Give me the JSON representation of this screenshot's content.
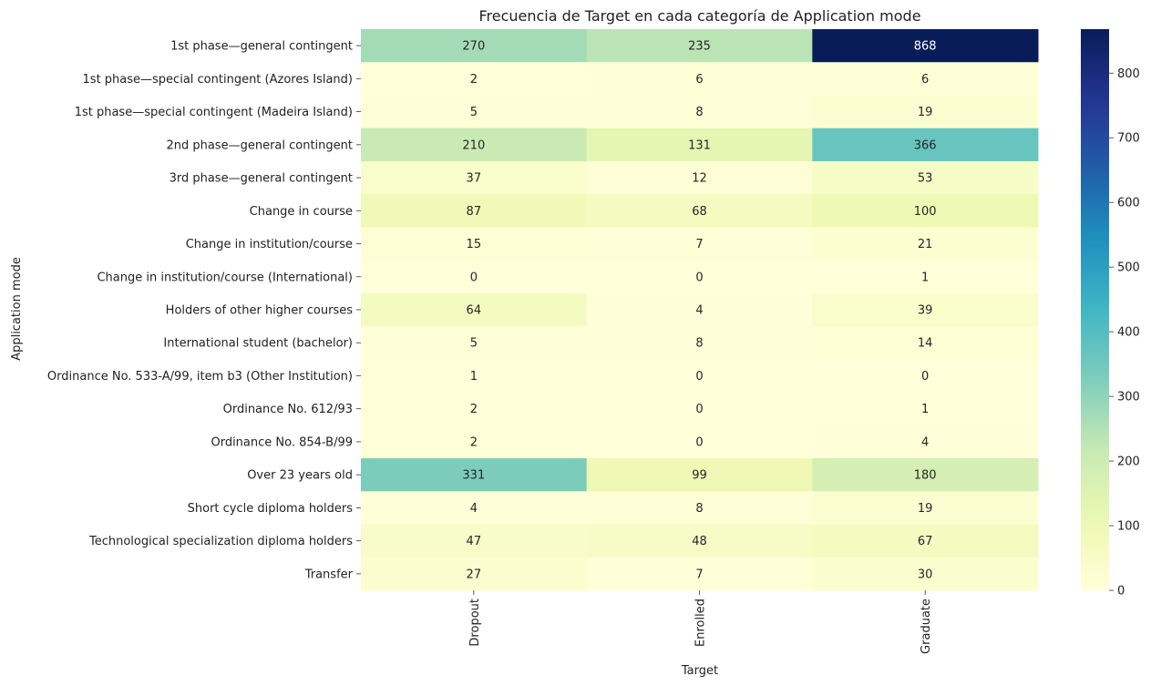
{
  "chart_data": {
    "type": "heatmap",
    "title": "Frecuencia de Target en cada categoría de Application mode",
    "xlabel": "Target",
    "ylabel": "Application mode",
    "columns": [
      "Dropout",
      "Enrolled",
      "Graduate"
    ],
    "rows": [
      "1st phase—general contingent",
      "1st phase—special contingent (Azores Island)",
      "1st phase—special contingent (Madeira Island)",
      "2nd phase—general contingent",
      "3rd phase—general contingent",
      "Change in course",
      "Change in institution/course",
      "Change in institution/course (International)",
      "Holders of other higher courses",
      "International student (bachelor)",
      "Ordinance No. 533-A/99, item b3 (Other Institution)",
      "Ordinance No. 612/93",
      "Ordinance No. 854-B/99",
      "Over 23 years old",
      "Short cycle diploma holders",
      "Technological specialization diploma holders",
      "Transfer"
    ],
    "values": [
      [
        270,
        235,
        868
      ],
      [
        2,
        6,
        6
      ],
      [
        5,
        8,
        19
      ],
      [
        210,
        131,
        366
      ],
      [
        37,
        12,
        53
      ],
      [
        87,
        68,
        100
      ],
      [
        15,
        7,
        21
      ],
      [
        0,
        0,
        1
      ],
      [
        64,
        4,
        39
      ],
      [
        5,
        8,
        14
      ],
      [
        1,
        0,
        0
      ],
      [
        2,
        0,
        1
      ],
      [
        2,
        0,
        4
      ],
      [
        331,
        99,
        180
      ],
      [
        4,
        8,
        19
      ],
      [
        47,
        48,
        67
      ],
      [
        27,
        7,
        30
      ]
    ],
    "colormap": "YlGnBu",
    "vmin": 0,
    "vmax": 868,
    "colorbar_ticks": [
      0,
      100,
      200,
      300,
      400,
      500,
      600,
      700,
      800
    ],
    "grid": false
  }
}
